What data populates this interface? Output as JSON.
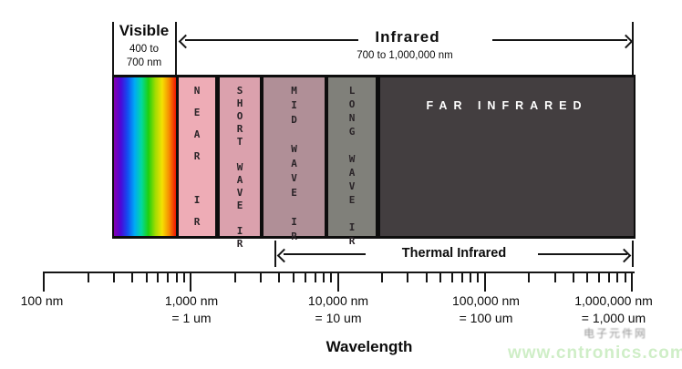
{
  "title_section": {
    "visible_label": "Visible",
    "visible_range": [
      "400 to",
      "700 nm"
    ],
    "infrared_label": "Infrared",
    "infrared_range": "700 to 1,000,000 nm"
  },
  "bands": {
    "visible": {
      "name": "visible spectrum band"
    },
    "near": {
      "label": "NEAR IR",
      "color": "#eeacb6"
    },
    "short": {
      "label": "SHORT WAVE IR",
      "color": "#dba1ad"
    },
    "mid": {
      "label": "MID WAVE IR",
      "color": "#b08f97"
    },
    "long": {
      "label": "LONG WAVE IR",
      "color": "#80807a"
    },
    "far": {
      "label": "FAR INFRARED",
      "color": "#433e40",
      "text_color": "#ffffff"
    }
  },
  "spectrum_gradient": [
    "#8600b0",
    "#4b08d8",
    "#1150f2",
    "#00aaf5",
    "#02d8a0",
    "#1ed00f",
    "#a0dc02",
    "#f5e003",
    "#f78c02",
    "#ee1503"
  ],
  "thermal_label": "Thermal Infrared",
  "axis": {
    "title": "Wavelength",
    "scale": "logarithmic",
    "labels": [
      {
        "nm": "100 nm",
        "um": ""
      },
      {
        "nm": "1,000 nm",
        "um": "= 1 um"
      },
      {
        "nm": "10,000 nm",
        "um": "= 10 um"
      },
      {
        "nm": "100,000 nm",
        "um": "= 100 um"
      },
      {
        "nm": "1,000,000 nm",
        "um": "= 1,000 um"
      }
    ]
  },
  "watermark": {
    "cjk_text": "电子元件网",
    "site": "www.cntronics.com",
    "site_color": "#cdeec5"
  }
}
